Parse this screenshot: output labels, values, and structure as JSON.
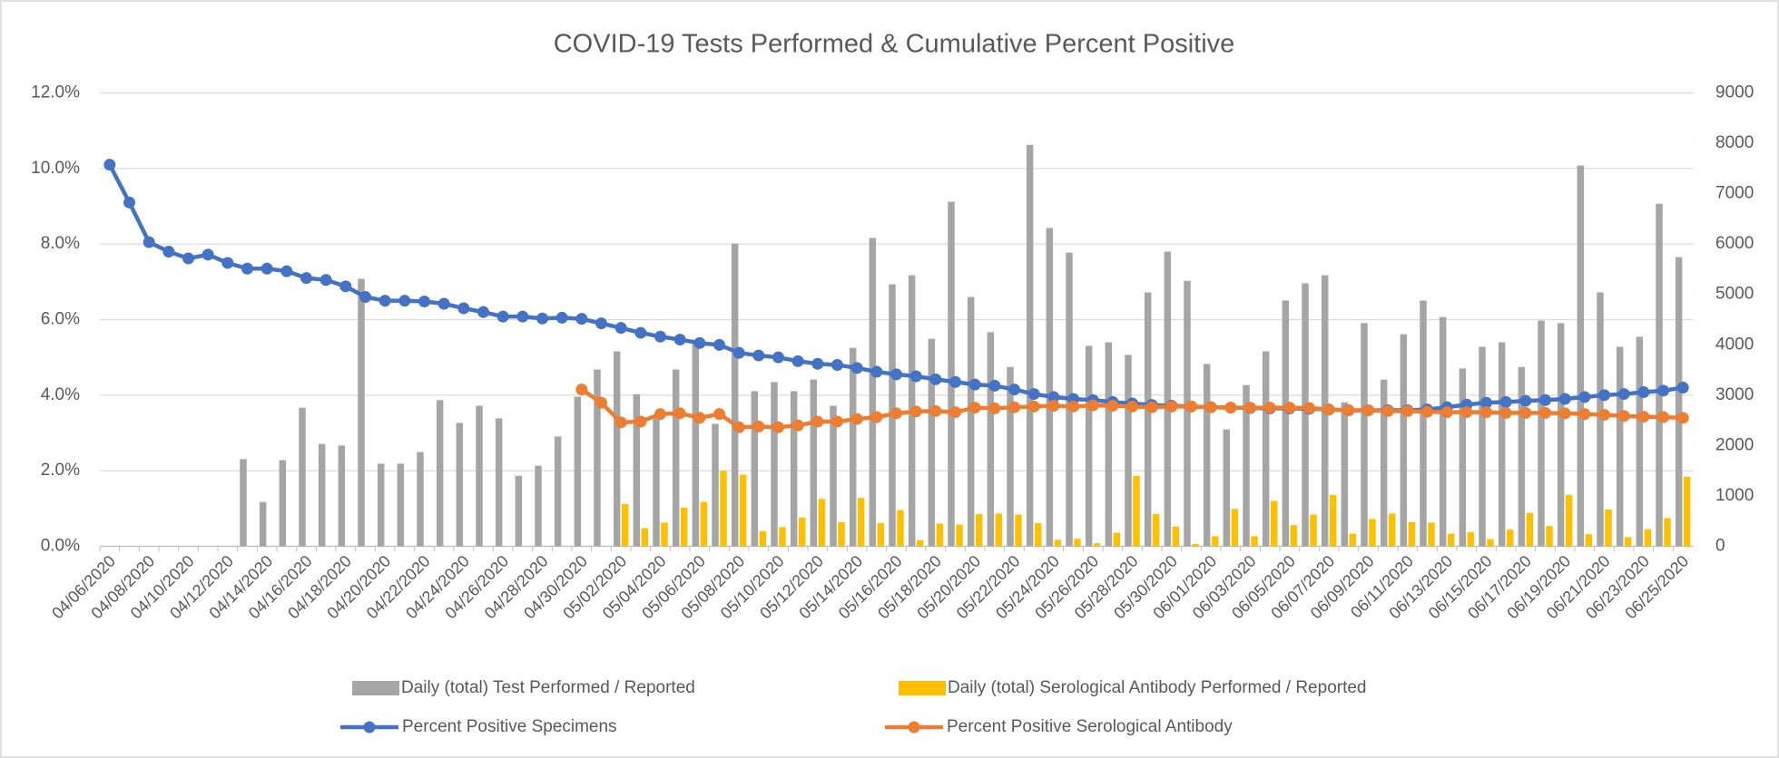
{
  "chart_data": {
    "type": "combo",
    "title": "COVID-19 Tests Performed & Cumulative Percent Positive",
    "categories": [
      "04/06/2020",
      null,
      "04/08/2020",
      null,
      "04/10/2020",
      null,
      "04/12/2020",
      null,
      "04/14/2020",
      null,
      "04/16/2020",
      null,
      "04/18/2020",
      null,
      "04/20/2020",
      null,
      "04/22/2020",
      null,
      "04/24/2020",
      null,
      "04/26/2020",
      null,
      "04/28/2020",
      null,
      "04/30/2020",
      null,
      "05/02/2020",
      null,
      "05/04/2020",
      null,
      "05/06/2020",
      null,
      "05/08/2020",
      null,
      "05/10/2020",
      null,
      "05/12/2020",
      null,
      "05/14/2020",
      null,
      "05/16/2020",
      null,
      "05/18/2020",
      null,
      "05/20/2020",
      null,
      "05/22/2020",
      null,
      "05/24/2020",
      null,
      "05/26/2020",
      null,
      "05/28/2020",
      null,
      "05/30/2020",
      null,
      "06/01/2020",
      null,
      "06/03/2020",
      null,
      "06/05/2020",
      null,
      "06/07/2020",
      null,
      "06/09/2020",
      null,
      "06/11/2020",
      null,
      "06/13/2020",
      null,
      "06/15/2020",
      null,
      "06/17/2020",
      null,
      "06/19/2020",
      null,
      "06/21/2020",
      null,
      "06/23/2020",
      null,
      "06/25/2020"
    ],
    "ylim": [
      0,
      12
    ],
    "yticks": [
      {
        "value": 0,
        "label": "0.0%"
      },
      {
        "value": 2,
        "label": "2.0%"
      },
      {
        "value": 4,
        "label": "4.0%"
      },
      {
        "value": 6,
        "label": "6.0%"
      },
      {
        "value": 8,
        "label": "8.0%"
      },
      {
        "value": 10,
        "label": "10.0%"
      },
      {
        "value": 12,
        "label": "12.0%"
      }
    ],
    "y2lim": [
      0,
      9000
    ],
    "y2ticks": [
      0,
      1000,
      2000,
      3000,
      4000,
      5000,
      6000,
      7000,
      8000,
      9000
    ],
    "grid": true,
    "legend": "bottom",
    "series": [
      {
        "name": "Daily (total) Test Performed / Reported",
        "type": "bar",
        "axis": "y2",
        "color": "#a5a5a5",
        "values": [
          null,
          null,
          null,
          null,
          null,
          null,
          null,
          1730,
          880,
          1710,
          2750,
          2030,
          2000,
          5310,
          1640,
          1640,
          1870,
          2900,
          2450,
          2790,
          2540,
          1400,
          1600,
          2180,
          2970,
          3510,
          3870,
          3020,
          2570,
          3510,
          4100,
          2430,
          6010,
          3080,
          3260,
          3080,
          3310,
          2790,
          3940,
          6120,
          5200,
          5380,
          4120,
          6840,
          4950,
          4250,
          3560,
          7970,
          6320,
          5830,
          3980,
          4050,
          3800,
          5040,
          5850,
          5270,
          3620,
          2320,
          3200,
          3870,
          4880,
          5220,
          5380,
          2860,
          4430,
          3310,
          4210,
          4880,
          4550,
          3530,
          3960,
          4050,
          3560,
          4480,
          4430,
          7560,
          5040,
          3960,
          4160,
          6800,
          5740
        ]
      },
      {
        "name": "Daily (total) Serological Antibody Performed / Reported",
        "type": "bar",
        "axis": "y2",
        "color": "#ffc000",
        "values": [
          null,
          null,
          null,
          null,
          null,
          null,
          null,
          null,
          null,
          null,
          null,
          null,
          null,
          null,
          null,
          null,
          null,
          null,
          null,
          null,
          null,
          null,
          null,
          null,
          null,
          null,
          840,
          360,
          470,
          770,
          880,
          1500,
          1420,
          300,
          380,
          570,
          940,
          480,
          960,
          460,
          720,
          120,
          450,
          430,
          640,
          650,
          630,
          460,
          130,
          150,
          60,
          270,
          1400,
          640,
          390,
          50,
          200,
          740,
          200,
          900,
          420,
          630,
          1020,
          250,
          540,
          650,
          480,
          470,
          250,
          280,
          140,
          330,
          660,
          400,
          1020,
          240,
          730,
          180,
          340,
          560,
          1380
        ]
      },
      {
        "name": "Percent Positive Specimens",
        "type": "line",
        "axis": "y",
        "color": "#4472c4",
        "values": [
          10.1,
          9.1,
          8.05,
          7.8,
          7.62,
          7.72,
          7.5,
          7.35,
          7.35,
          7.28,
          7.1,
          7.05,
          6.88,
          6.6,
          6.5,
          6.5,
          6.48,
          6.42,
          6.3,
          6.2,
          6.08,
          6.08,
          6.03,
          6.05,
          6.02,
          5.9,
          5.78,
          5.65,
          5.55,
          5.47,
          5.38,
          5.33,
          5.12,
          5.05,
          5.0,
          4.9,
          4.83,
          4.8,
          4.72,
          4.62,
          4.55,
          4.5,
          4.42,
          4.35,
          4.28,
          4.25,
          4.15,
          4.03,
          3.95,
          3.9,
          3.87,
          3.82,
          3.78,
          3.74,
          3.72,
          3.7,
          3.68,
          3.67,
          3.66,
          3.65,
          3.65,
          3.64,
          3.62,
          3.6,
          3.6,
          3.6,
          3.6,
          3.62,
          3.68,
          3.75,
          3.8,
          3.82,
          3.85,
          3.87,
          3.9,
          3.95,
          4.0,
          4.03,
          4.08,
          4.12,
          4.2
        ]
      },
      {
        "name": "Percent Positive Serological Antibody",
        "type": "line",
        "axis": "y",
        "color": "#ed7d31",
        "values": [
          null,
          null,
          null,
          null,
          null,
          null,
          null,
          null,
          null,
          null,
          null,
          null,
          null,
          null,
          null,
          null,
          null,
          null,
          null,
          null,
          null,
          null,
          null,
          null,
          4.15,
          3.8,
          3.28,
          3.3,
          3.5,
          3.52,
          3.4,
          3.5,
          3.15,
          3.17,
          3.15,
          3.2,
          3.3,
          3.3,
          3.37,
          3.42,
          3.52,
          3.57,
          3.58,
          3.55,
          3.67,
          3.65,
          3.68,
          3.7,
          3.72,
          3.7,
          3.73,
          3.72,
          3.7,
          3.68,
          3.7,
          3.7,
          3.68,
          3.67,
          3.67,
          3.67,
          3.67,
          3.66,
          3.62,
          3.6,
          3.6,
          3.58,
          3.58,
          3.56,
          3.55,
          3.55,
          3.55,
          3.53,
          3.53,
          3.53,
          3.52,
          3.5,
          3.48,
          3.45,
          3.43,
          3.42,
          3.4
        ]
      }
    ]
  }
}
